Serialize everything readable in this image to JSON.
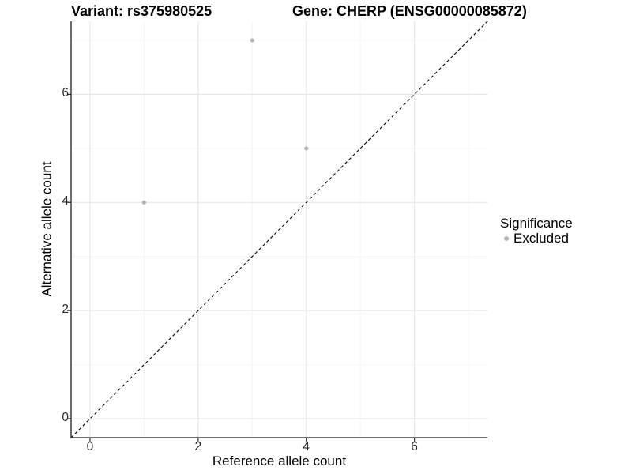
{
  "chart_data": {
    "type": "scatter",
    "title_variant": "Variant: rs375980525",
    "title_gene": "Gene: CHERP (ENSG00000085872)",
    "xlabel": "Reference allele count",
    "ylabel": "Alternative allele count",
    "xlim": [
      -0.35,
      7.35
    ],
    "ylim": [
      -0.35,
      7.35
    ],
    "x_ticks": [
      0,
      2,
      4,
      6
    ],
    "y_ticks": [
      0,
      2,
      4,
      6
    ],
    "x_minor_gridlines": [
      1,
      3,
      5,
      7
    ],
    "y_minor_gridlines": [
      1,
      3,
      5,
      7
    ],
    "grid": "major and minor",
    "legend_position": "right",
    "legend": {
      "title": "Significance",
      "items": [
        {
          "label": "Excluded",
          "color": "#b3b3b3"
        }
      ]
    },
    "identity_line": {
      "equation": "y = x",
      "style": "dashed",
      "color": "#000000"
    },
    "series": [
      {
        "name": "Excluded",
        "color": "#b3b3b3",
        "points": [
          {
            "x": 3,
            "y": 7
          },
          {
            "x": 1,
            "y": 4
          },
          {
            "x": 4,
            "y": 5
          }
        ]
      }
    ],
    "colors": {
      "background": "#ffffff",
      "grid_major": "#e7e7e7",
      "grid_minor": "#f4f4f4",
      "axis_line": "#474747",
      "tick_mark": "#333333",
      "text": "#000000"
    }
  }
}
